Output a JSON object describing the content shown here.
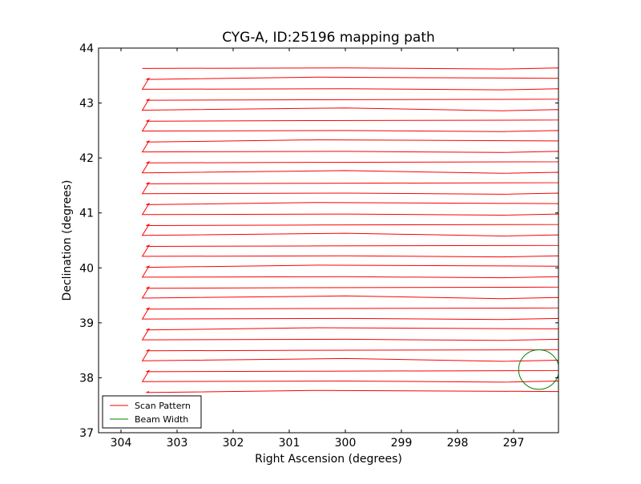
{
  "chart_data": {
    "type": "line",
    "title": "CYG-A, ID:25196 mapping path",
    "xlabel": "Right Ascension (degrees)",
    "ylabel": "Declination (degrees)",
    "xlim": [
      304.4,
      296.2
    ],
    "ylim": [
      37.0,
      44.0
    ],
    "x_inverted": true,
    "xticks": [
      304,
      303,
      302,
      301,
      300,
      299,
      298,
      297
    ],
    "yticks": [
      37,
      38,
      39,
      40,
      41,
      42,
      43,
      44
    ],
    "grid": false,
    "legend_position": "lower-left",
    "legend": [
      {
        "label": "Scan Pattern",
        "color": "#ff0000"
      },
      {
        "label": "Beam Width",
        "color": "#008000"
      }
    ],
    "scan_pattern": {
      "name": "Scan Pattern",
      "color": "#ff0000",
      "ra_west": 303.6,
      "ra_east": 296.2,
      "dec_start": 37.75,
      "dec_end": 43.75,
      "row_spacing": 0.19
    },
    "beam_width": {
      "name": "Beam Width",
      "color": "#008000",
      "center_ra": 296.55,
      "center_dec": 38.15,
      "radius_deg": 0.36
    }
  }
}
